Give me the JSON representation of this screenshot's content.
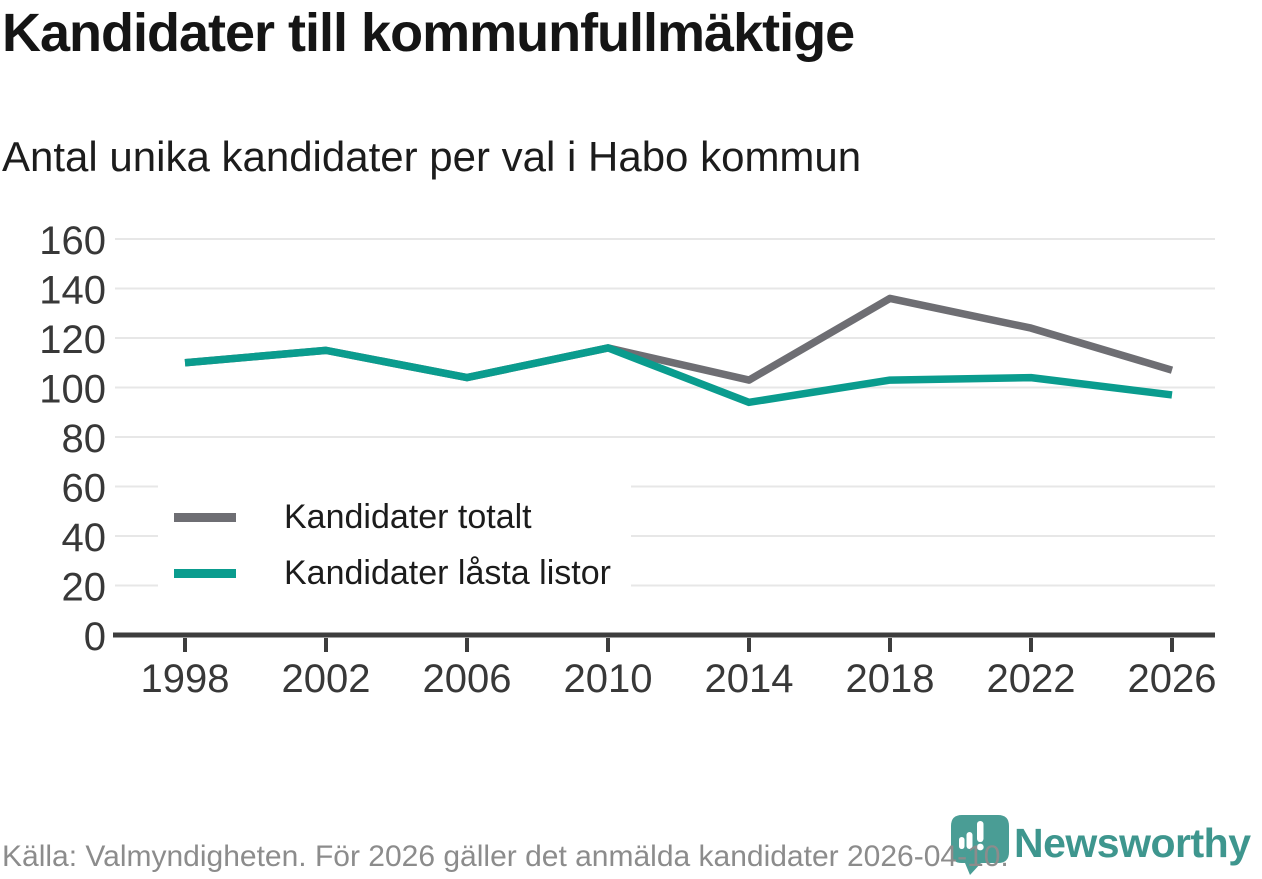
{
  "title": "Kandidater till kommunfullmäktige",
  "subtitle": "Antal unika kandidater per val i Habo kommun",
  "footer": {
    "source": "Källa: Valmyndigheten. För 2026 gäller det anmälda kandidater 2026-04-10.",
    "brand": "Newsworthy"
  },
  "colors": {
    "total": "#6e6e73",
    "locked": "#0a9c8e",
    "grid": "#e7e7e7",
    "axis": "#3d3d3d",
    "brand_teal": "#4a9d95",
    "brand_text": "#3e968e",
    "footer_text": "#8c8c8c"
  },
  "legend": {
    "items": [
      {
        "label": "Kandidater totalt"
      },
      {
        "label": "Kandidater låsta listor"
      }
    ]
  },
  "chart_data": {
    "type": "line",
    "title": "Kandidater till kommunfullmäktige",
    "subtitle": "Antal unika kandidater per val i Habo kommun",
    "x": [
      1998,
      2002,
      2006,
      2010,
      2014,
      2018,
      2022,
      2026
    ],
    "series": [
      {
        "name": "Kandidater totalt",
        "color_key": "total",
        "values": [
          110,
          115,
          104,
          116,
          103,
          136,
          124,
          107
        ]
      },
      {
        "name": "Kandidater låsta listor",
        "color_key": "locked",
        "values": [
          110,
          115,
          104,
          116,
          94,
          103,
          104,
          97
        ]
      }
    ],
    "xlabel": "",
    "ylabel": "",
    "ylim": [
      0,
      160
    ],
    "yticks": [
      0,
      20,
      40,
      60,
      80,
      100,
      120,
      140,
      160
    ],
    "grid": "horizontal",
    "legend_position": "inside-left"
  }
}
